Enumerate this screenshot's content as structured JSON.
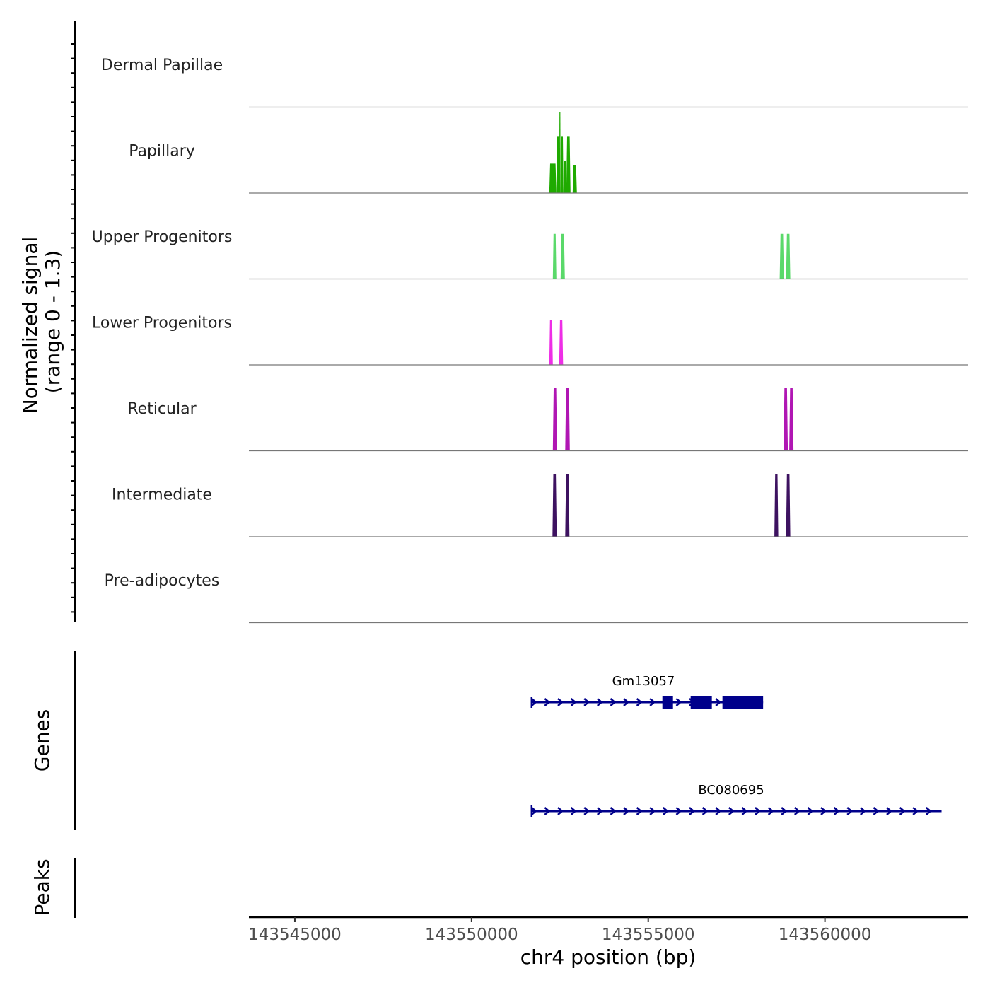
{
  "chart_data": {
    "type": "coverage-tracks",
    "chromosome": "chr4",
    "xlabel": "chr4 position (bp)",
    "xlim": [
      143543700,
      143564050
    ],
    "xticks": [
      143545000,
      143550000,
      143555000,
      143560000
    ],
    "xtick_labels": [
      "143545000",
      "143550000",
      "143555000",
      "143560000"
    ],
    "coverage_ylabel": [
      "Normalized signal",
      "(range 0 - 1.3)"
    ],
    "signal_range": [
      0,
      1.3
    ],
    "tracks": [
      {
        "name": "Dermal Papillae",
        "color": "#1a8f00",
        "peaks": []
      },
      {
        "name": "Papillary",
        "color": "#1faa00",
        "peaks": [
          {
            "start": 143552200,
            "end": 143552400,
            "value": 0.47
          },
          {
            "start": 143552400,
            "end": 143552480,
            "value": 0.9
          },
          {
            "start": 143552480,
            "end": 143552520,
            "value": 1.3
          },
          {
            "start": 143552520,
            "end": 143552600,
            "value": 0.9
          },
          {
            "start": 143552600,
            "end": 143552680,
            "value": 0.52
          },
          {
            "start": 143552680,
            "end": 143552800,
            "value": 0.9
          },
          {
            "start": 143552860,
            "end": 143552980,
            "value": 0.45
          }
        ]
      },
      {
        "name": "Upper Progenitors",
        "color": "#5ad96a",
        "peaks": [
          {
            "start": 143552300,
            "end": 143552400,
            "value": 0.72
          },
          {
            "start": 143552520,
            "end": 143552640,
            "value": 0.72
          },
          {
            "start": 143558720,
            "end": 143558840,
            "value": 0.72
          },
          {
            "start": 143558900,
            "end": 143559020,
            "value": 0.72
          }
        ]
      },
      {
        "name": "Lower Progenitors",
        "color": "#ee2ee6",
        "peaks": [
          {
            "start": 143552200,
            "end": 143552300,
            "value": 0.72
          },
          {
            "start": 143552480,
            "end": 143552590,
            "value": 0.72
          }
        ]
      },
      {
        "name": "Reticular",
        "color": "#b016b3",
        "peaks": [
          {
            "start": 143552300,
            "end": 143552420,
            "value": 1.0
          },
          {
            "start": 143552650,
            "end": 143552780,
            "value": 1.0
          },
          {
            "start": 143558830,
            "end": 143558950,
            "value": 1.0
          },
          {
            "start": 143558990,
            "end": 143559110,
            "value": 1.0
          }
        ]
      },
      {
        "name": "Intermediate",
        "color": "#3d1260",
        "peaks": [
          {
            "start": 143552290,
            "end": 143552410,
            "value": 1.0
          },
          {
            "start": 143552650,
            "end": 143552770,
            "value": 1.0
          },
          {
            "start": 143558570,
            "end": 143558680,
            "value": 1.0
          },
          {
            "start": 143558900,
            "end": 143559020,
            "value": 1.0
          }
        ]
      },
      {
        "name": "Pre-adipocytes",
        "color": "#6b6b6b",
        "peaks": []
      }
    ],
    "genes_label": "Genes",
    "peaks_label": "Peaks",
    "gene_color": "#00008b",
    "genes": [
      {
        "name": "Gm13057",
        "start": 143551700,
        "end": 143558250,
        "strand": "+",
        "exons": [
          {
            "start": 143555400,
            "end": 143555700
          },
          {
            "start": 143556200,
            "end": 143556800
          },
          {
            "start": 143557100,
            "end": 143558250
          }
        ]
      },
      {
        "name": "BC080695",
        "start": 143551700,
        "end": 143563300,
        "strand": "+",
        "exons": []
      }
    ]
  }
}
